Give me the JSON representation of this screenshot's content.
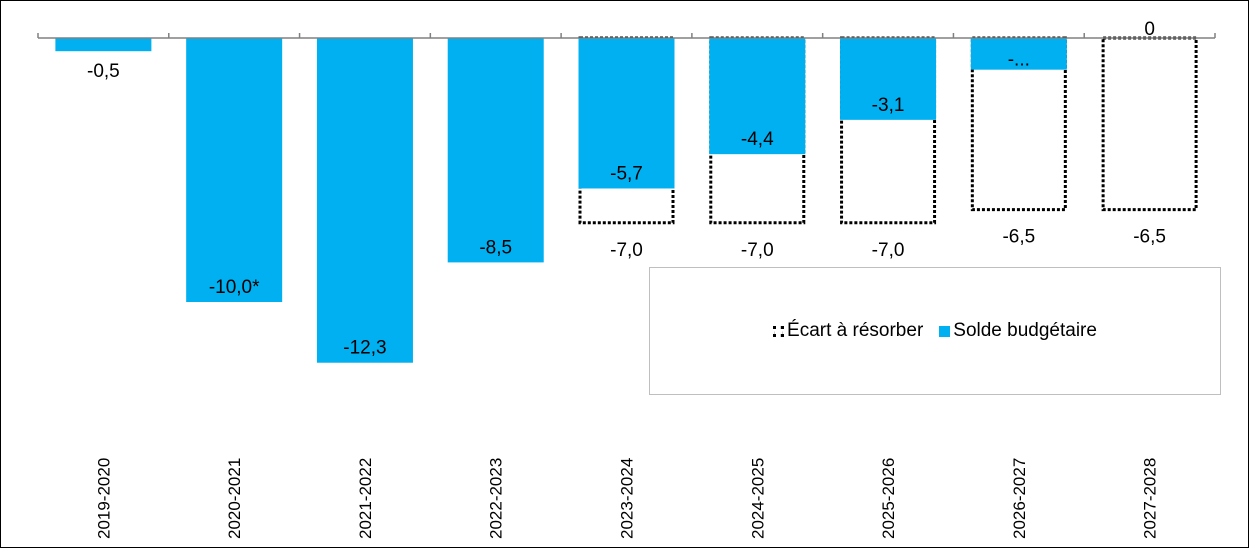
{
  "colors": {
    "solde": "#00b0f0",
    "ecart": "#000000"
  },
  "chart_data": {
    "type": "bar",
    "stacked_overlay": true,
    "categories": [
      "2019-2020",
      "2020-2021",
      "2021-2022",
      "2022-2023",
      "2023-2024",
      "2024-2025",
      "2025-2026",
      "2026-2027",
      "2027-2028"
    ],
    "series": [
      {
        "name": "Écart à résorber",
        "style": "dotted-outline",
        "values": [
          null,
          null,
          null,
          null,
          -7.0,
          -7.0,
          -7.0,
          -6.5,
          -6.5
        ],
        "labels": [
          "",
          "",
          "",
          "",
          "-7,0",
          "-7,0",
          "-7,0",
          "-6,5",
          "-6,5"
        ]
      },
      {
        "name": "Solde budgétaire",
        "style": "solid",
        "values": [
          -0.5,
          -10.0,
          -12.3,
          -8.5,
          -5.7,
          -4.4,
          -3.1,
          -1.2,
          0
        ],
        "labels": [
          "-0,5",
          "-10,0*",
          "-12,3",
          "-8,5",
          "-5,7",
          "-4,4",
          "-3,1",
          "-...",
          "0"
        ]
      }
    ],
    "ylim": [
      -14.5,
      0
    ],
    "grid": false,
    "legend": "bottom-right"
  }
}
